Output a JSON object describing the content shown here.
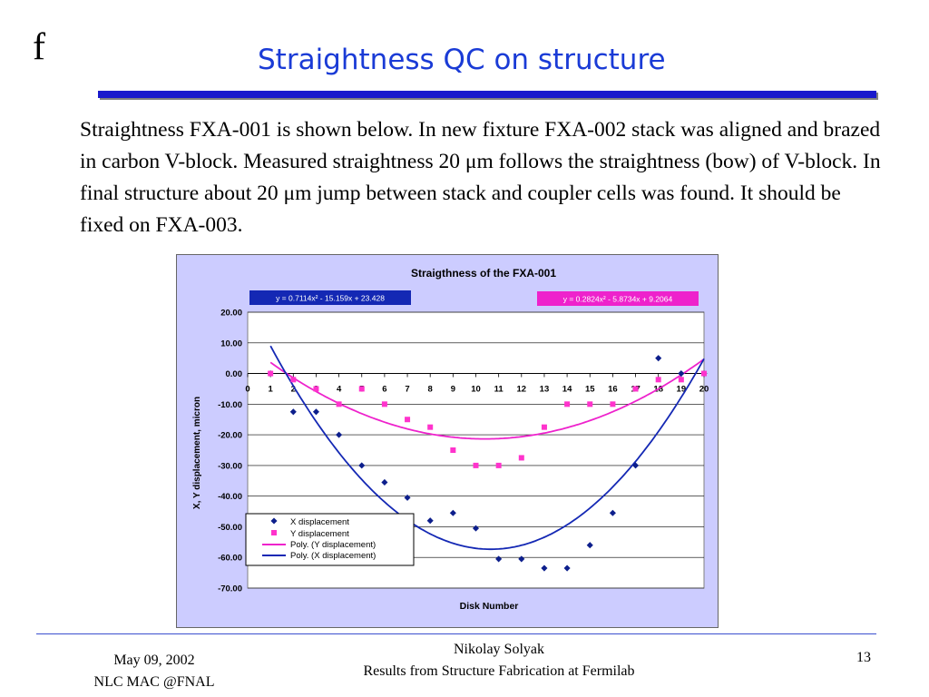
{
  "slide": {
    "logo": "f",
    "title": "Straightness QC on structure",
    "body": "Straightness FXA-001 is shown below. In new fixture FXA-002 stack was aligned and brazed in carbon V-block.  Measured straightness 20 μm follows the straightness (bow) of V-block. In final structure about 20 μm jump between stack and coupler cells was found. It should be fixed on FXA-003.",
    "colors": {
      "title": "#1a3bd6",
      "rule": "#1a1acc",
      "chart_bg": "#ccccff"
    }
  },
  "footer": {
    "date": "May 09, 2002",
    "venue": "NLC MAC @FNAL",
    "author": "Nikolay Solyak",
    "subtitle": "Results from Structure Fabrication at Fermilab",
    "page": "13"
  },
  "chart_data": {
    "type": "scatter",
    "title": "Straigthness of the FXA-001",
    "xlabel": "Disk Number",
    "ylabel": "X, Y displacement, micron",
    "xlim": [
      0,
      20
    ],
    "ylim": [
      -70,
      20
    ],
    "xticks": [
      "0",
      "1",
      "2",
      "3",
      "4",
      "5",
      "6",
      "7",
      "8",
      "9",
      "10",
      "11",
      "12",
      "13",
      "14",
      "15",
      "16",
      "17",
      "18",
      "19",
      "20"
    ],
    "yticks": [
      "20.00",
      "10.00",
      "0.00",
      "-10.00",
      "-20.00",
      "-30.00",
      "-40.00",
      "-50.00",
      "-60.00",
      "-70.00"
    ],
    "grid": "horizontal",
    "legend_position": "lower-left",
    "series": [
      {
        "name": "X displacement",
        "marker": "diamond",
        "color": "#0d1f8c",
        "x": [
          1,
          2,
          3,
          4,
          5,
          6,
          7,
          8,
          9,
          10,
          11,
          12,
          13,
          14,
          15,
          16,
          17,
          18,
          19,
          20
        ],
        "y": [
          0,
          -12.5,
          -12.5,
          -20,
          -30,
          -35.5,
          -40.5,
          -48,
          -45.5,
          -50.5,
          -60.5,
          -60.5,
          -63.5,
          -63.5,
          -56,
          -45.5,
          -30,
          5,
          0,
          0
        ]
      },
      {
        "name": "Y displacement",
        "marker": "square",
        "color": "#ff33cc",
        "x": [
          1,
          2,
          3,
          4,
          5,
          6,
          7,
          8,
          9,
          10,
          11,
          12,
          13,
          14,
          15,
          16,
          17,
          18,
          19,
          20
        ],
        "y": [
          0,
          -2,
          -5,
          -10,
          -5,
          -10,
          -15,
          -17.5,
          -25,
          -30,
          -30,
          -27.5,
          -17.5,
          -10,
          -10,
          -10,
          -5,
          -2,
          -2,
          0
        ]
      }
    ],
    "trendlines": [
      {
        "name": "Poly. (Y displacement)",
        "color": "#ee22cc",
        "coefficients": [
          0.2824,
          -5.8734,
          9.2064
        ],
        "equation": "y = 0.2824x² - 5.8734x + 9.2064",
        "x_range": [
          1,
          20
        ]
      },
      {
        "name": "Poly. (X displacement)",
        "color": "#1428b4",
        "coefficients": [
          0.7114,
          -15.159,
          23.428
        ],
        "equation": "y = 0.7114x² - 15.159x + 23.428",
        "x_range": [
          1,
          20
        ]
      }
    ]
  }
}
